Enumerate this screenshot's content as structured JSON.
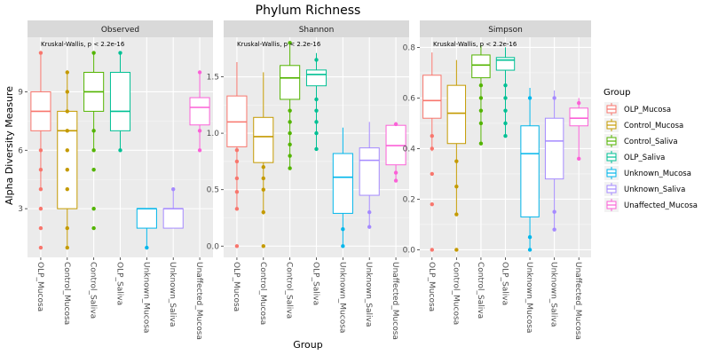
{
  "chart_data": {
    "type": "box",
    "title": "Phylum Richness",
    "xlabel": "Group",
    "ylabel": "Alpha Diversity Measure",
    "legend_title": "Group",
    "legend_position": "right",
    "groups": [
      "OLP_Mucosa",
      "Control_Mucosa",
      "Control_Saliva",
      "OLP_Saliva",
      "Unknown_Mucosa",
      "Unknown_Saliva",
      "Unaffected_Mucosa"
    ],
    "colors": [
      "#F8766D",
      "#C49A00",
      "#53B400",
      "#00C094",
      "#00B6EB",
      "#A58AFF",
      "#FB61D7"
    ],
    "panels": [
      {
        "name": "Observed",
        "annotation": "Kruskal-Wallis, p < 2.2e-16",
        "ylim": [
          0.5,
          11.8
        ],
        "yticks": [
          3,
          6,
          9
        ],
        "boxes": [
          {
            "group": "OLP_Mucosa",
            "q1": 7,
            "median": 8,
            "q3": 9,
            "whisker_low": 4,
            "whisker_high": 11,
            "outliers": [
              1,
              2,
              3,
              4,
              5,
              6,
              11
            ]
          },
          {
            "group": "Control_Mucosa",
            "q1": 3,
            "median": 7,
            "q3": 8,
            "whisker_low": 1,
            "whisker_high": 10,
            "outliers": [
              1,
              2,
              4,
              5,
              6,
              7,
              8,
              9,
              10
            ]
          },
          {
            "group": "Control_Saliva",
            "q1": 8,
            "median": 9,
            "q3": 10,
            "whisker_low": 6,
            "whisker_high": 11,
            "outliers": [
              2,
              3,
              5,
              6,
              7,
              11
            ]
          },
          {
            "group": "OLP_Saliva",
            "q1": 7,
            "median": 8,
            "q3": 10,
            "whisker_low": 6,
            "whisker_high": 11,
            "outliers": [
              6,
              11
            ]
          },
          {
            "group": "Unknown_Mucosa",
            "q1": 2,
            "median": 3,
            "q3": 3,
            "whisker_low": 1,
            "whisker_high": 3,
            "outliers": [
              1
            ]
          },
          {
            "group": "Unknown_Saliva",
            "q1": 2,
            "median": 3,
            "q3": 3,
            "whisker_low": 2,
            "whisker_high": 4,
            "outliers": [
              4
            ]
          },
          {
            "group": "Unaffected_Mucosa",
            "q1": 7.3,
            "median": 8.2,
            "q3": 8.7,
            "whisker_low": 6,
            "whisker_high": 10,
            "outliers": [
              6,
              7,
              10
            ]
          }
        ]
      },
      {
        "name": "Shannon",
        "annotation": "Kruskal-Wallis, p < 2.2e-16",
        "ylim": [
          -0.1,
          1.85
        ],
        "yticks": [
          0.0,
          0.5,
          1.0,
          1.5
        ],
        "boxes": [
          {
            "group": "OLP_Mucosa",
            "q1": 0.88,
            "median": 1.1,
            "q3": 1.33,
            "whisker_low": 0.33,
            "whisker_high": 1.63,
            "outliers": [
              0.0,
              0.33,
              0.48,
              0.6,
              0.75,
              0.85
            ]
          },
          {
            "group": "Control_Mucosa",
            "q1": 0.74,
            "median": 0.97,
            "q3": 1.14,
            "whisker_low": 0.28,
            "whisker_high": 1.54,
            "outliers": [
              0.0,
              0.3,
              0.5,
              0.6,
              0.7
            ]
          },
          {
            "group": "Control_Saliva",
            "q1": 1.3,
            "median": 1.49,
            "q3": 1.6,
            "whisker_low": 0.69,
            "whisker_high": 1.8,
            "outliers": [
              0.69,
              0.8,
              0.9,
              1.0,
              1.1,
              1.2,
              1.8
            ]
          },
          {
            "group": "OLP_Saliva",
            "q1": 1.42,
            "median": 1.52,
            "q3": 1.56,
            "whisker_low": 0.86,
            "whisker_high": 1.71,
            "outliers": [
              0.86,
              1.0,
              1.1,
              1.2,
              1.3,
              1.65
            ]
          },
          {
            "group": "Unknown_Mucosa",
            "q1": 0.29,
            "median": 0.61,
            "q3": 0.82,
            "whisker_low": 0.0,
            "whisker_high": 1.05,
            "outliers": [
              0.0,
              0.15
            ]
          },
          {
            "group": "Unknown_Saliva",
            "q1": 0.45,
            "median": 0.76,
            "q3": 0.87,
            "whisker_low": 0.17,
            "whisker_high": 1.1,
            "outliers": [
              0.17,
              0.3
            ]
          },
          {
            "group": "Unaffected_Mucosa",
            "q1": 0.72,
            "median": 0.89,
            "q3": 1.07,
            "whisker_low": 0.58,
            "whisker_high": 1.1,
            "outliers": [
              0.58,
              0.65,
              1.08
            ]
          }
        ]
      },
      {
        "name": "Simpson",
        "annotation": "Kruskal-Wallis, p < 2.2e-16",
        "ylim": [
          -0.03,
          0.84
        ],
        "yticks": [
          0.0,
          0.2,
          0.4,
          0.6,
          0.8
        ],
        "boxes": [
          {
            "group": "OLP_Mucosa",
            "q1": 0.52,
            "median": 0.59,
            "q3": 0.69,
            "whisker_low": 0.39,
            "whisker_high": 0.78,
            "outliers": [
              0.0,
              0.18,
              0.3,
              0.4,
              0.45
            ]
          },
          {
            "group": "Control_Mucosa",
            "q1": 0.42,
            "median": 0.54,
            "q3": 0.65,
            "whisker_low": 0.14,
            "whisker_high": 0.75,
            "outliers": [
              0.0,
              0.14,
              0.25,
              0.35
            ]
          },
          {
            "group": "Control_Saliva",
            "q1": 0.68,
            "median": 0.73,
            "q3": 0.77,
            "whisker_low": 0.42,
            "whisker_high": 0.81,
            "outliers": [
              0.42,
              0.5,
              0.55,
              0.6,
              0.65
            ]
          },
          {
            "group": "OLP_Saliva",
            "q1": 0.71,
            "median": 0.75,
            "q3": 0.76,
            "whisker_low": 0.45,
            "whisker_high": 0.8,
            "outliers": [
              0.45,
              0.5,
              0.55,
              0.6,
              0.65
            ]
          },
          {
            "group": "Unknown_Mucosa",
            "q1": 0.13,
            "median": 0.38,
            "q3": 0.49,
            "whisker_low": 0.0,
            "whisker_high": 0.64,
            "outliers": [
              0.0,
              0.05,
              0.6
            ]
          },
          {
            "group": "Unknown_Saliva",
            "q1": 0.28,
            "median": 0.43,
            "q3": 0.52,
            "whisker_low": 0.08,
            "whisker_high": 0.63,
            "outliers": [
              0.08,
              0.15,
              0.6
            ]
          },
          {
            "group": "Unaffected_Mucosa",
            "q1": 0.49,
            "median": 0.52,
            "q3": 0.56,
            "whisker_low": 0.36,
            "whisker_high": 0.6,
            "outliers": [
              0.36,
              0.58
            ]
          }
        ]
      }
    ]
  }
}
